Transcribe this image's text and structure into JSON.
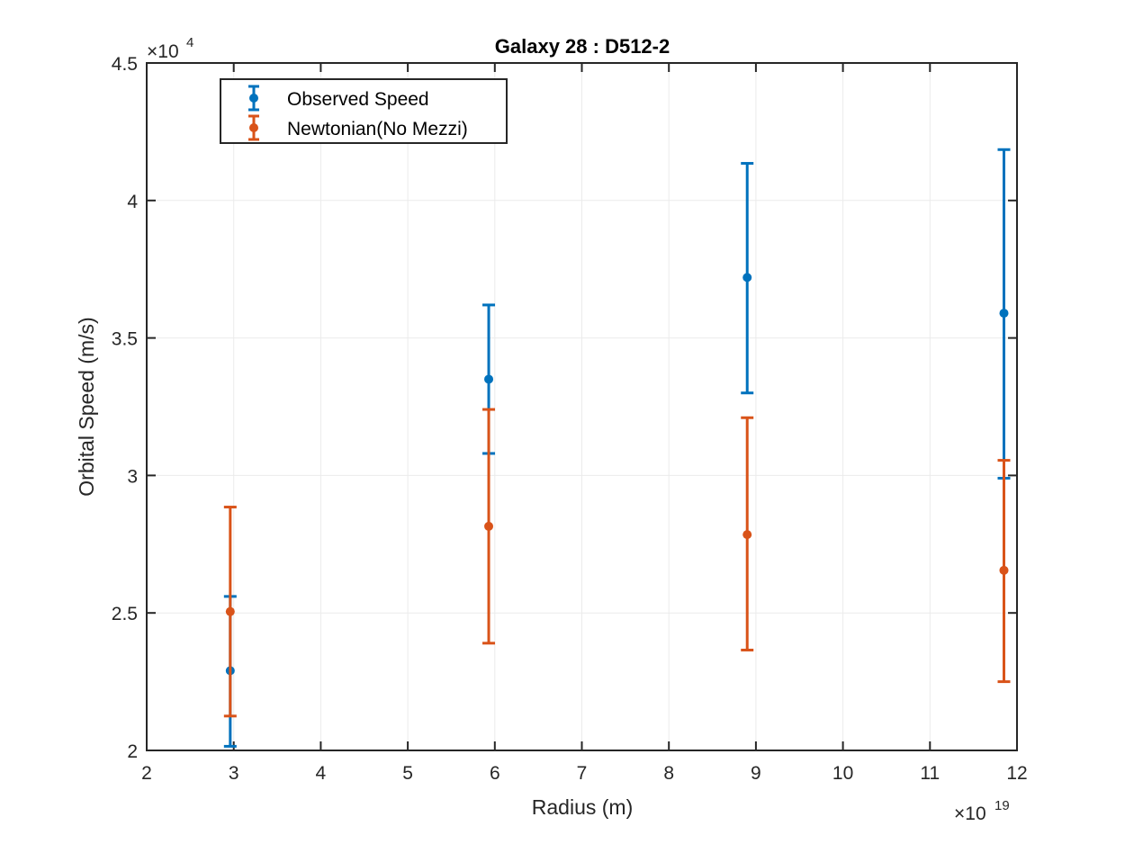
{
  "chart_data": {
    "type": "scatter",
    "title": "Galaxy 28 : D512-2",
    "xlabel": "Radius (m)",
    "ylabel": "Orbital Speed (m/s)",
    "xlim": [
      2e+19,
      1.2e+20
    ],
    "ylim": [
      20000,
      45000
    ],
    "x_ticks": [
      2,
      3,
      4,
      5,
      6,
      7,
      8,
      9,
      10,
      11,
      12
    ],
    "y_ticks": [
      2,
      2.5,
      3,
      3.5,
      4,
      4.5
    ],
    "x_multiplier": "×10",
    "x_exponent": "19",
    "y_multiplier": "×10",
    "y_exponent": "4",
    "grid": true,
    "legend_position": "top-left",
    "series": [
      {
        "name": "Observed Speed",
        "color": "#0072BD",
        "points": [
          {
            "x": 2.96e+19,
            "y": 22900,
            "ylow": 20150,
            "yhigh": 25600
          },
          {
            "x": 5.93e+19,
            "y": 33500,
            "ylow": 30800,
            "yhigh": 36200
          },
          {
            "x": 8.9e+19,
            "y": 37200,
            "ylow": 33000,
            "yhigh": 41350
          },
          {
            "x": 1.185e+20,
            "y": 35900,
            "ylow": 29900,
            "yhigh": 41850
          }
        ]
      },
      {
        "name": "Newtonian(No Mezzi)",
        "color": "#D95319",
        "points": [
          {
            "x": 2.96e+19,
            "y": 25050,
            "ylow": 21250,
            "yhigh": 28850
          },
          {
            "x": 5.93e+19,
            "y": 28150,
            "ylow": 23900,
            "yhigh": 32400
          },
          {
            "x": 8.9e+19,
            "y": 27850,
            "ylow": 23650,
            "yhigh": 32100
          },
          {
            "x": 1.185e+20,
            "y": 26550,
            "ylow": 22500,
            "yhigh": 30550
          }
        ]
      }
    ]
  }
}
